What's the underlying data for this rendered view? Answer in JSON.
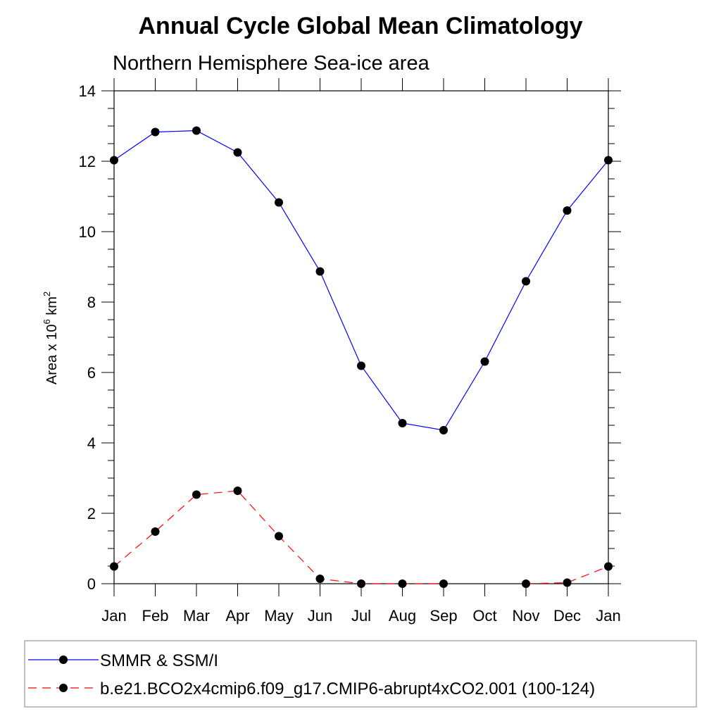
{
  "chart_data": {
    "type": "line",
    "title": "Annual Cycle Global Mean Climatology",
    "subtitle": "Northern Hemisphere Sea-ice area",
    "ylabel_main": "Area x 10",
    "ylabel_exp1": "6",
    "ylabel_unit": " km",
    "ylabel_exp2": "2",
    "ylim": [
      0,
      14
    ],
    "yticks": [
      "0",
      "2",
      "4",
      "6",
      "8",
      "10",
      "12",
      "14"
    ],
    "categories": [
      "Jan",
      "Feb",
      "Mar",
      "Apr",
      "May",
      "Jun",
      "Jul",
      "Aug",
      "Sep",
      "Oct",
      "Nov",
      "Dec",
      "Jan"
    ],
    "series": [
      {
        "name": "SMMR & SSM/I",
        "color": "#0000ff",
        "style": "solid",
        "values": [
          12.03,
          12.83,
          12.87,
          12.25,
          10.83,
          8.87,
          6.19,
          4.56,
          4.36,
          6.31,
          8.59,
          10.6,
          12.03
        ]
      },
      {
        "name": "b.e21.BCO2x4cmip6.f09_g17.CMIP6-abrupt4xCO2.001 (100-124)",
        "color": "#ff0000",
        "style": "dashed",
        "values": [
          0.49,
          1.48,
          2.53,
          2.64,
          1.35,
          0.14,
          0.0,
          0.0,
          0.0,
          null,
          0.0,
          0.03,
          0.49
        ]
      }
    ]
  }
}
